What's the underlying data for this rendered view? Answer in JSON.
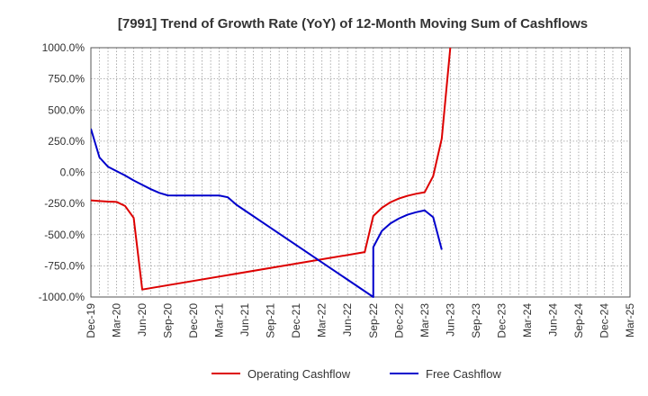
{
  "chart_data": {
    "type": "line",
    "title": "[7991]  Trend of Growth Rate (YoY) of 12-Month Moving Sum of Cashflows",
    "xlabel": "",
    "ylabel": "",
    "ylim": [
      -1000,
      1000
    ],
    "y_ticks": [
      "1000.0%",
      "750.0%",
      "500.0%",
      "250.0%",
      "0.0%",
      "-250.0%",
      "-500.0%",
      "-750.0%",
      "-1000.0%"
    ],
    "y_tick_values": [
      1000,
      750,
      500,
      250,
      0,
      -250,
      -500,
      -750,
      -1000
    ],
    "x_ticks": [
      "Dec-19",
      "Mar-20",
      "Jun-20",
      "Sep-20",
      "Dec-20",
      "Mar-21",
      "Jun-21",
      "Sep-21",
      "Dec-21",
      "Mar-22",
      "Jun-22",
      "Sep-22",
      "Dec-22",
      "Mar-23",
      "Jun-23",
      "Sep-23",
      "Dec-23",
      "Mar-24",
      "Jun-24",
      "Sep-24",
      "Dec-24",
      "Mar-25"
    ],
    "x_range": [
      "2019-12",
      "2025-03"
    ],
    "grid": true,
    "legend_position": "bottom",
    "series": [
      {
        "name": "Operating Cashflow",
        "color": "#dd0000",
        "points": [
          [
            "2019-12",
            -225
          ],
          [
            "2020-01",
            -230
          ],
          [
            "2020-02",
            -235
          ],
          [
            "2020-03",
            -237
          ],
          [
            "2020-04",
            -270
          ],
          [
            "2020-05",
            -365
          ],
          [
            "2020-06",
            -940
          ],
          [
            "2022-08",
            -640
          ],
          [
            "2022-09",
            -350
          ],
          [
            "2022-10",
            -285
          ],
          [
            "2022-11",
            -240
          ],
          [
            "2022-12",
            -210
          ],
          [
            "2023-01",
            -188
          ],
          [
            "2023-02",
            -172
          ],
          [
            "2023-03",
            -160
          ],
          [
            "2023-04",
            -30
          ],
          [
            "2023-05",
            270
          ],
          [
            "2023-06",
            1000
          ]
        ]
      },
      {
        "name": "Free Cashflow",
        "color": "#0000cc",
        "points": [
          [
            "2019-12",
            350
          ],
          [
            "2020-01",
            120
          ],
          [
            "2020-02",
            45
          ],
          [
            "2020-03",
            10
          ],
          [
            "2020-04",
            -25
          ],
          [
            "2020-05",
            -65
          ],
          [
            "2020-06",
            -100
          ],
          [
            "2020-07",
            -135
          ],
          [
            "2020-08",
            -165
          ],
          [
            "2020-09",
            -185
          ],
          [
            "2020-10",
            -186
          ],
          [
            "2020-11",
            -186
          ],
          [
            "2020-12",
            -186
          ],
          [
            "2021-01",
            -186
          ],
          [
            "2021-02",
            -186
          ],
          [
            "2021-03",
            -186
          ],
          [
            "2021-04",
            -200
          ],
          [
            "2021-05",
            -260
          ],
          [
            "2022-09",
            -1000
          ],
          [
            "2022-09",
            -600
          ],
          [
            "2022-10",
            -470
          ],
          [
            "2022-11",
            -410
          ],
          [
            "2022-12",
            -370
          ],
          [
            "2023-01",
            -340
          ],
          [
            "2023-02",
            -320
          ],
          [
            "2023-03",
            -305
          ],
          [
            "2023-04",
            -360
          ],
          [
            "2023-05",
            -620
          ]
        ]
      }
    ]
  }
}
